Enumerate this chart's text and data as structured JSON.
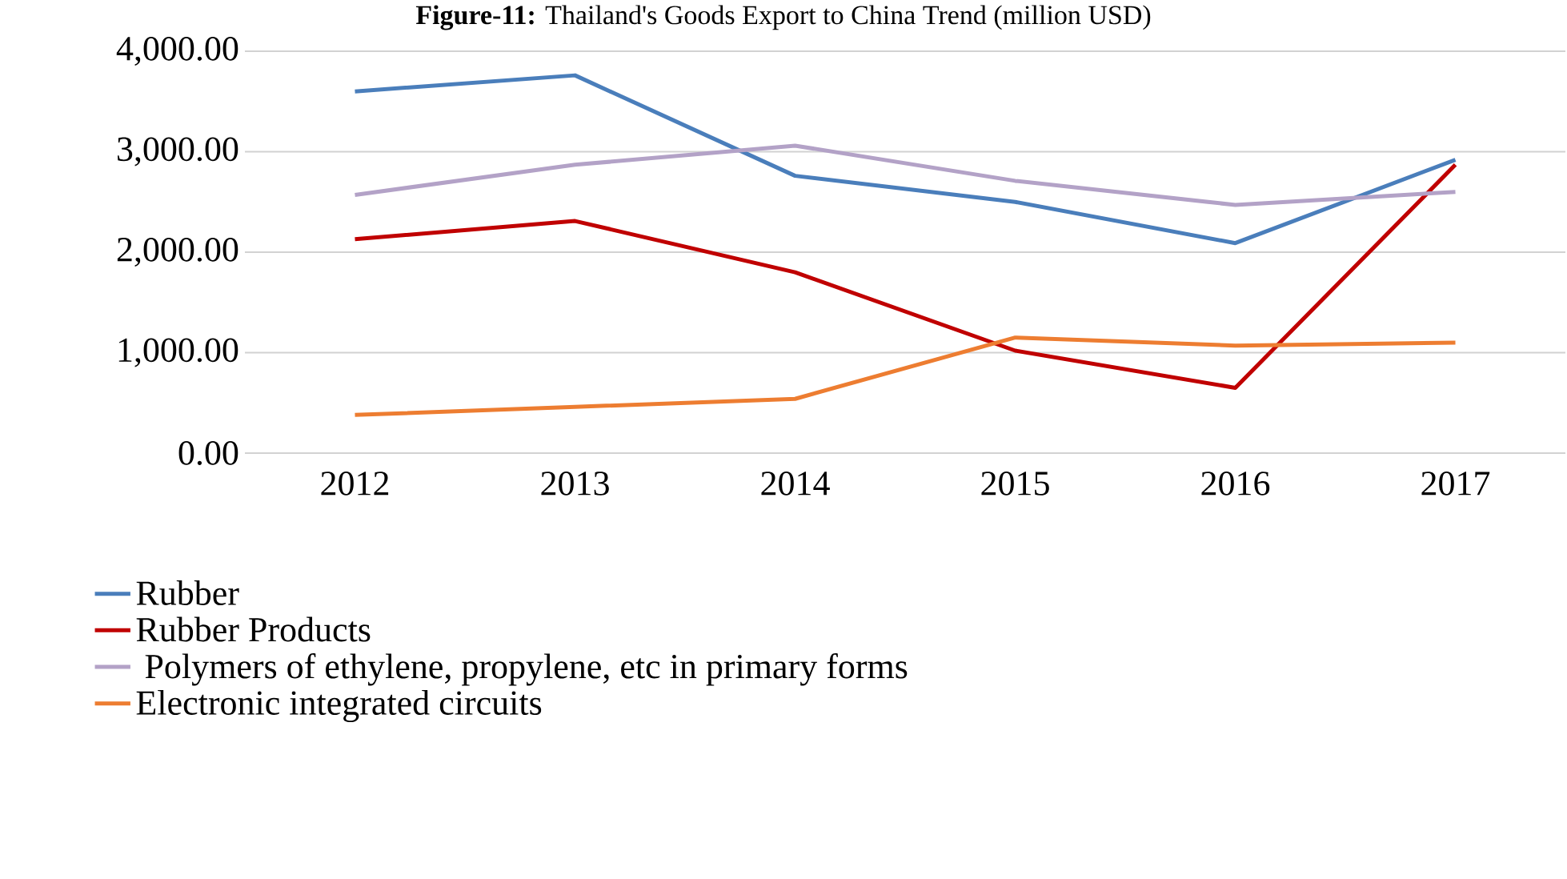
{
  "chart_data": {
    "type": "line",
    "title": "**Figure-11:** Thailand's Goods Export to China Trend (million USD)",
    "categories": [
      "2012",
      "2013",
      "2014",
      "2015",
      "2016",
      "2017"
    ],
    "series": [
      {
        "name": "Rubber",
        "color": "#4a7ebb",
        "values": [
          3600,
          3760,
          2760,
          2500,
          2090,
          2920
        ]
      },
      {
        "name": "Rubber Products",
        "color": "#c00000",
        "values": [
          2130,
          2310,
          1800,
          1020,
          650,
          2870
        ]
      },
      {
        "name": " Polymers of ethylene, propylene, etc in primary forms",
        "color": "#b3a2c7",
        "values": [
          2570,
          2870,
          3060,
          2710,
          2470,
          2600
        ]
      },
      {
        "name": "Electronic integrated circuits",
        "color": "#ed7d31",
        "values": [
          380,
          460,
          540,
          1150,
          1070,
          1100
        ]
      }
    ],
    "ylim": [
      0,
      4000
    ],
    "yticks": [
      {
        "value": 0,
        "label": "0.00"
      },
      {
        "value": 1000,
        "label": "1,000.00"
      },
      {
        "value": 2000,
        "label": "2,000.00"
      },
      {
        "value": 3000,
        "label": "3,000.00"
      },
      {
        "value": 4000,
        "label": "4,000.00"
      }
    ],
    "grid": "y",
    "legend": "bottom",
    "marker": "none",
    "line_style": "solid"
  }
}
